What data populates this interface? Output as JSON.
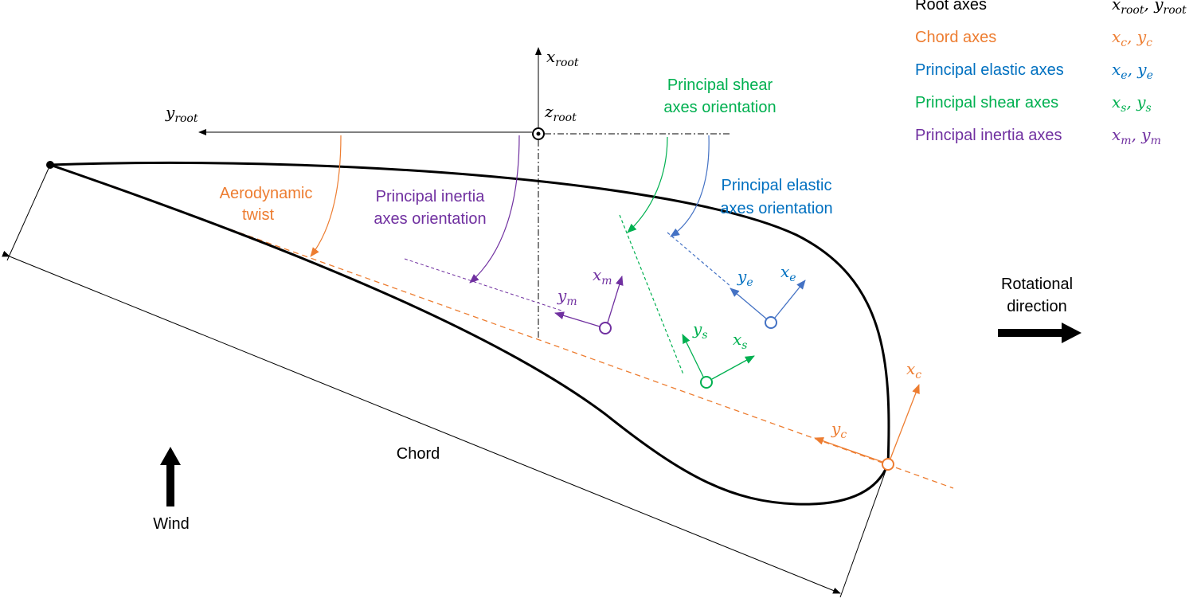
{
  "colors": {
    "root": "#000000",
    "chord": "#ED7D31",
    "elastic": "#4472C4",
    "elastic_text": "#0070C0",
    "shear": "#00B050",
    "inertia": "#7030A0"
  },
  "legend": [
    {
      "label": "Root axes",
      "x": "x",
      "xs": "root",
      "y": "y",
      "ys": "root",
      "color": "#000000"
    },
    {
      "label": "Chord axes",
      "x": "x",
      "xs": "c",
      "y": "y",
      "ys": "c",
      "color": "#ED7D31"
    },
    {
      "label": "Principal elastic axes",
      "x": "x",
      "xs": "e",
      "y": "y",
      "ys": "e",
      "color": "#0070C0"
    },
    {
      "label": "Principal shear axes",
      "x": "x",
      "xs": "s",
      "y": "y",
      "ys": "s",
      "color": "#00B050"
    },
    {
      "label": "Principal inertia axes",
      "x": "x",
      "xs": "m",
      "y": "y",
      "ys": "m",
      "color": "#7030A0"
    }
  ],
  "labels": {
    "aero_twist_1": "Aerodynamic",
    "aero_twist_2": "twist",
    "inertia_1": "Principal inertia",
    "inertia_2": "axes orientation",
    "shear_1": "Principal shear",
    "shear_2": "axes orientation",
    "elastic_1": "Principal elastic",
    "elastic_2": "axes orientation",
    "rot_1": "Rotational",
    "rot_2": "direction",
    "chord": "Chord",
    "wind": "Wind"
  },
  "axes": {
    "x_root": {
      "v": "x",
      "s": "root"
    },
    "y_root": {
      "v": "y",
      "s": "root"
    },
    "z_root": {
      "v": "z",
      "s": "root"
    },
    "x_m": {
      "v": "x",
      "s": "m"
    },
    "y_m": {
      "v": "y",
      "s": "m"
    },
    "x_s": {
      "v": "x",
      "s": "s"
    },
    "y_s": {
      "v": "y",
      "s": "s"
    },
    "x_e": {
      "v": "x",
      "s": "e"
    },
    "y_e": {
      "v": "y",
      "s": "e"
    },
    "x_c": {
      "v": "x",
      "s": "c"
    },
    "y_c": {
      "v": "y",
      "s": "c"
    }
  }
}
